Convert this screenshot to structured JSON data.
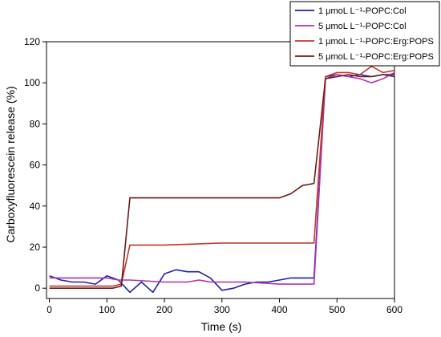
{
  "chart_data": {
    "type": "line",
    "xlabel": "Time (s)",
    "ylabel": "Carboxyfluorescein release (%)",
    "xlim": [
      -5,
      600
    ],
    "ylim": [
      -5,
      120
    ],
    "x_ticks": [
      0,
      100,
      200,
      300,
      400,
      500,
      600
    ],
    "y_ticks": [
      0,
      20,
      40,
      60,
      80,
      100,
      120
    ],
    "grid": false,
    "legend_position": "top-right",
    "series": [
      {
        "name": "1 μmoL L⁻¹-POPC:Col",
        "color": "#1f1fb0",
        "x": [
          0,
          20,
          40,
          60,
          80,
          100,
          120,
          140,
          160,
          180,
          200,
          220,
          240,
          260,
          280,
          300,
          320,
          340,
          360,
          380,
          400,
          420,
          440,
          460,
          480,
          500,
          520,
          540,
          560,
          580,
          600
        ],
        "y": [
          6,
          4,
          3,
          3,
          2,
          6,
          4,
          -2,
          3,
          -2,
          7,
          9,
          8,
          8,
          5,
          -1,
          0,
          2,
          3,
          3,
          4,
          5,
          5,
          5,
          103,
          104,
          103,
          104,
          103,
          104,
          103
        ]
      },
      {
        "name": "5 μmoL L⁻¹-POPC:Col",
        "color": "#b030b0",
        "x": [
          0,
          40,
          80,
          100,
          120,
          140,
          200,
          240,
          260,
          280,
          300,
          340,
          400,
          460,
          480,
          500,
          520,
          540,
          560,
          580,
          600
        ],
        "y": [
          5,
          5,
          5,
          5,
          4,
          4,
          3,
          3,
          4,
          3,
          3,
          3,
          2,
          2,
          102,
          104,
          103,
          102,
          100,
          102,
          105
        ]
      },
      {
        "name": "1 μmoL L⁻¹-POPC:Erg:POPS",
        "color": "#c03a2a",
        "x": [
          0,
          60,
          110,
          125,
          140,
          200,
          300,
          400,
          460,
          480,
          500,
          520,
          540,
          560,
          580,
          600
        ],
        "y": [
          1,
          1,
          1,
          2,
          21,
          21,
          22,
          22,
          22,
          103,
          105,
          105,
          104,
          108,
          105,
          106
        ]
      },
      {
        "name": "5 μmoL L⁻¹-POPC:Erg:POPS",
        "color": "#6a1a1a",
        "x": [
          0,
          60,
          110,
          125,
          140,
          200,
          300,
          380,
          400,
          420,
          440,
          460,
          480,
          500,
          520,
          540,
          560,
          580,
          600
        ],
        "y": [
          0,
          0,
          0,
          1,
          44,
          44,
          44,
          44,
          44,
          46,
          50,
          51,
          102,
          103,
          104,
          103,
          103,
          104,
          104
        ]
      }
    ]
  }
}
